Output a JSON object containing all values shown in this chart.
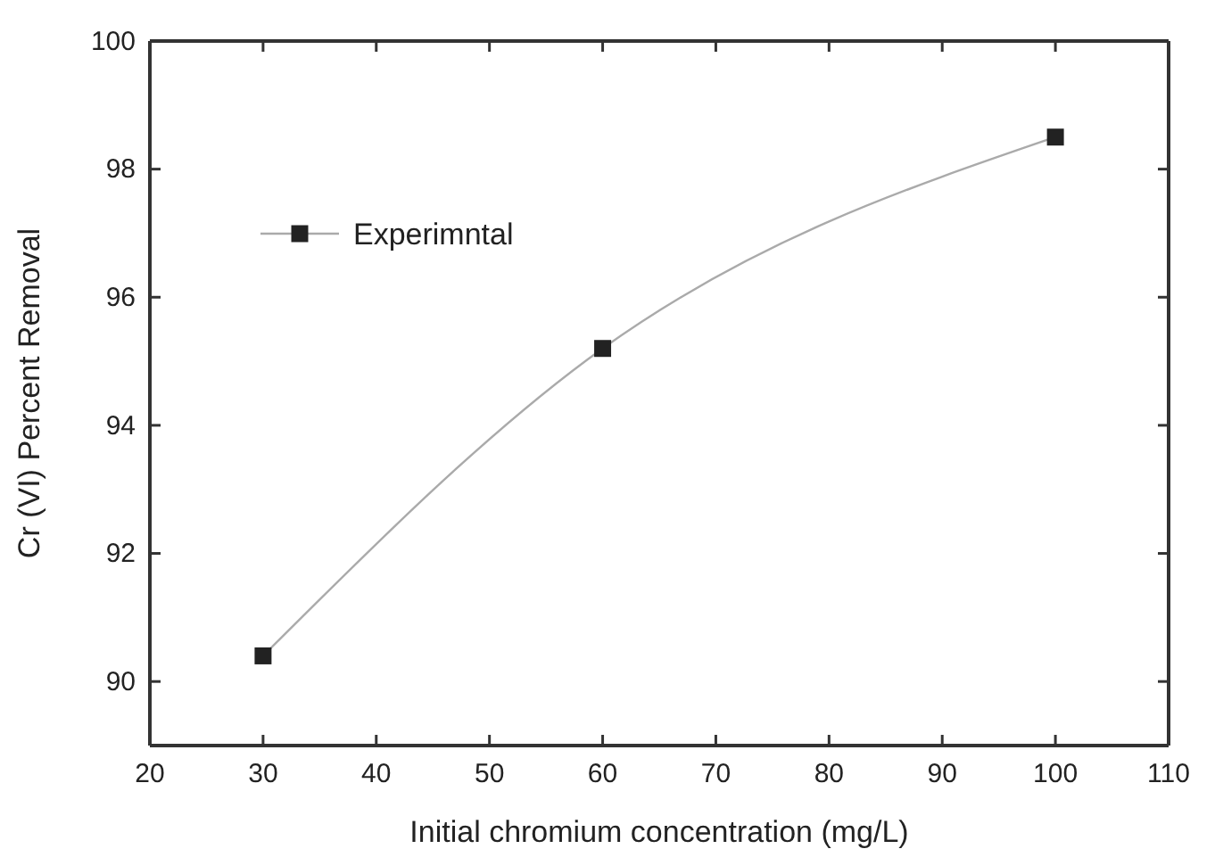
{
  "chart_data": {
    "type": "line",
    "xlabel": "Initial chromium concentration (mg/L)",
    "ylabel": "Cr (VI) Percent Removal",
    "x": [
      30,
      60,
      100
    ],
    "series": [
      {
        "name": "Experimntal",
        "color": "#222222",
        "values": [
          90.4,
          95.2,
          98.5
        ]
      }
    ],
    "xlim": [
      20,
      110
    ],
    "xticks": [
      20,
      30,
      40,
      50,
      60,
      70,
      80,
      90,
      100,
      110
    ],
    "ylim": [
      89,
      100
    ],
    "yticks": [
      90,
      92,
      94,
      96,
      98,
      100
    ],
    "marker": "square",
    "line_style": "solid",
    "grid": false,
    "legend": "top left"
  }
}
